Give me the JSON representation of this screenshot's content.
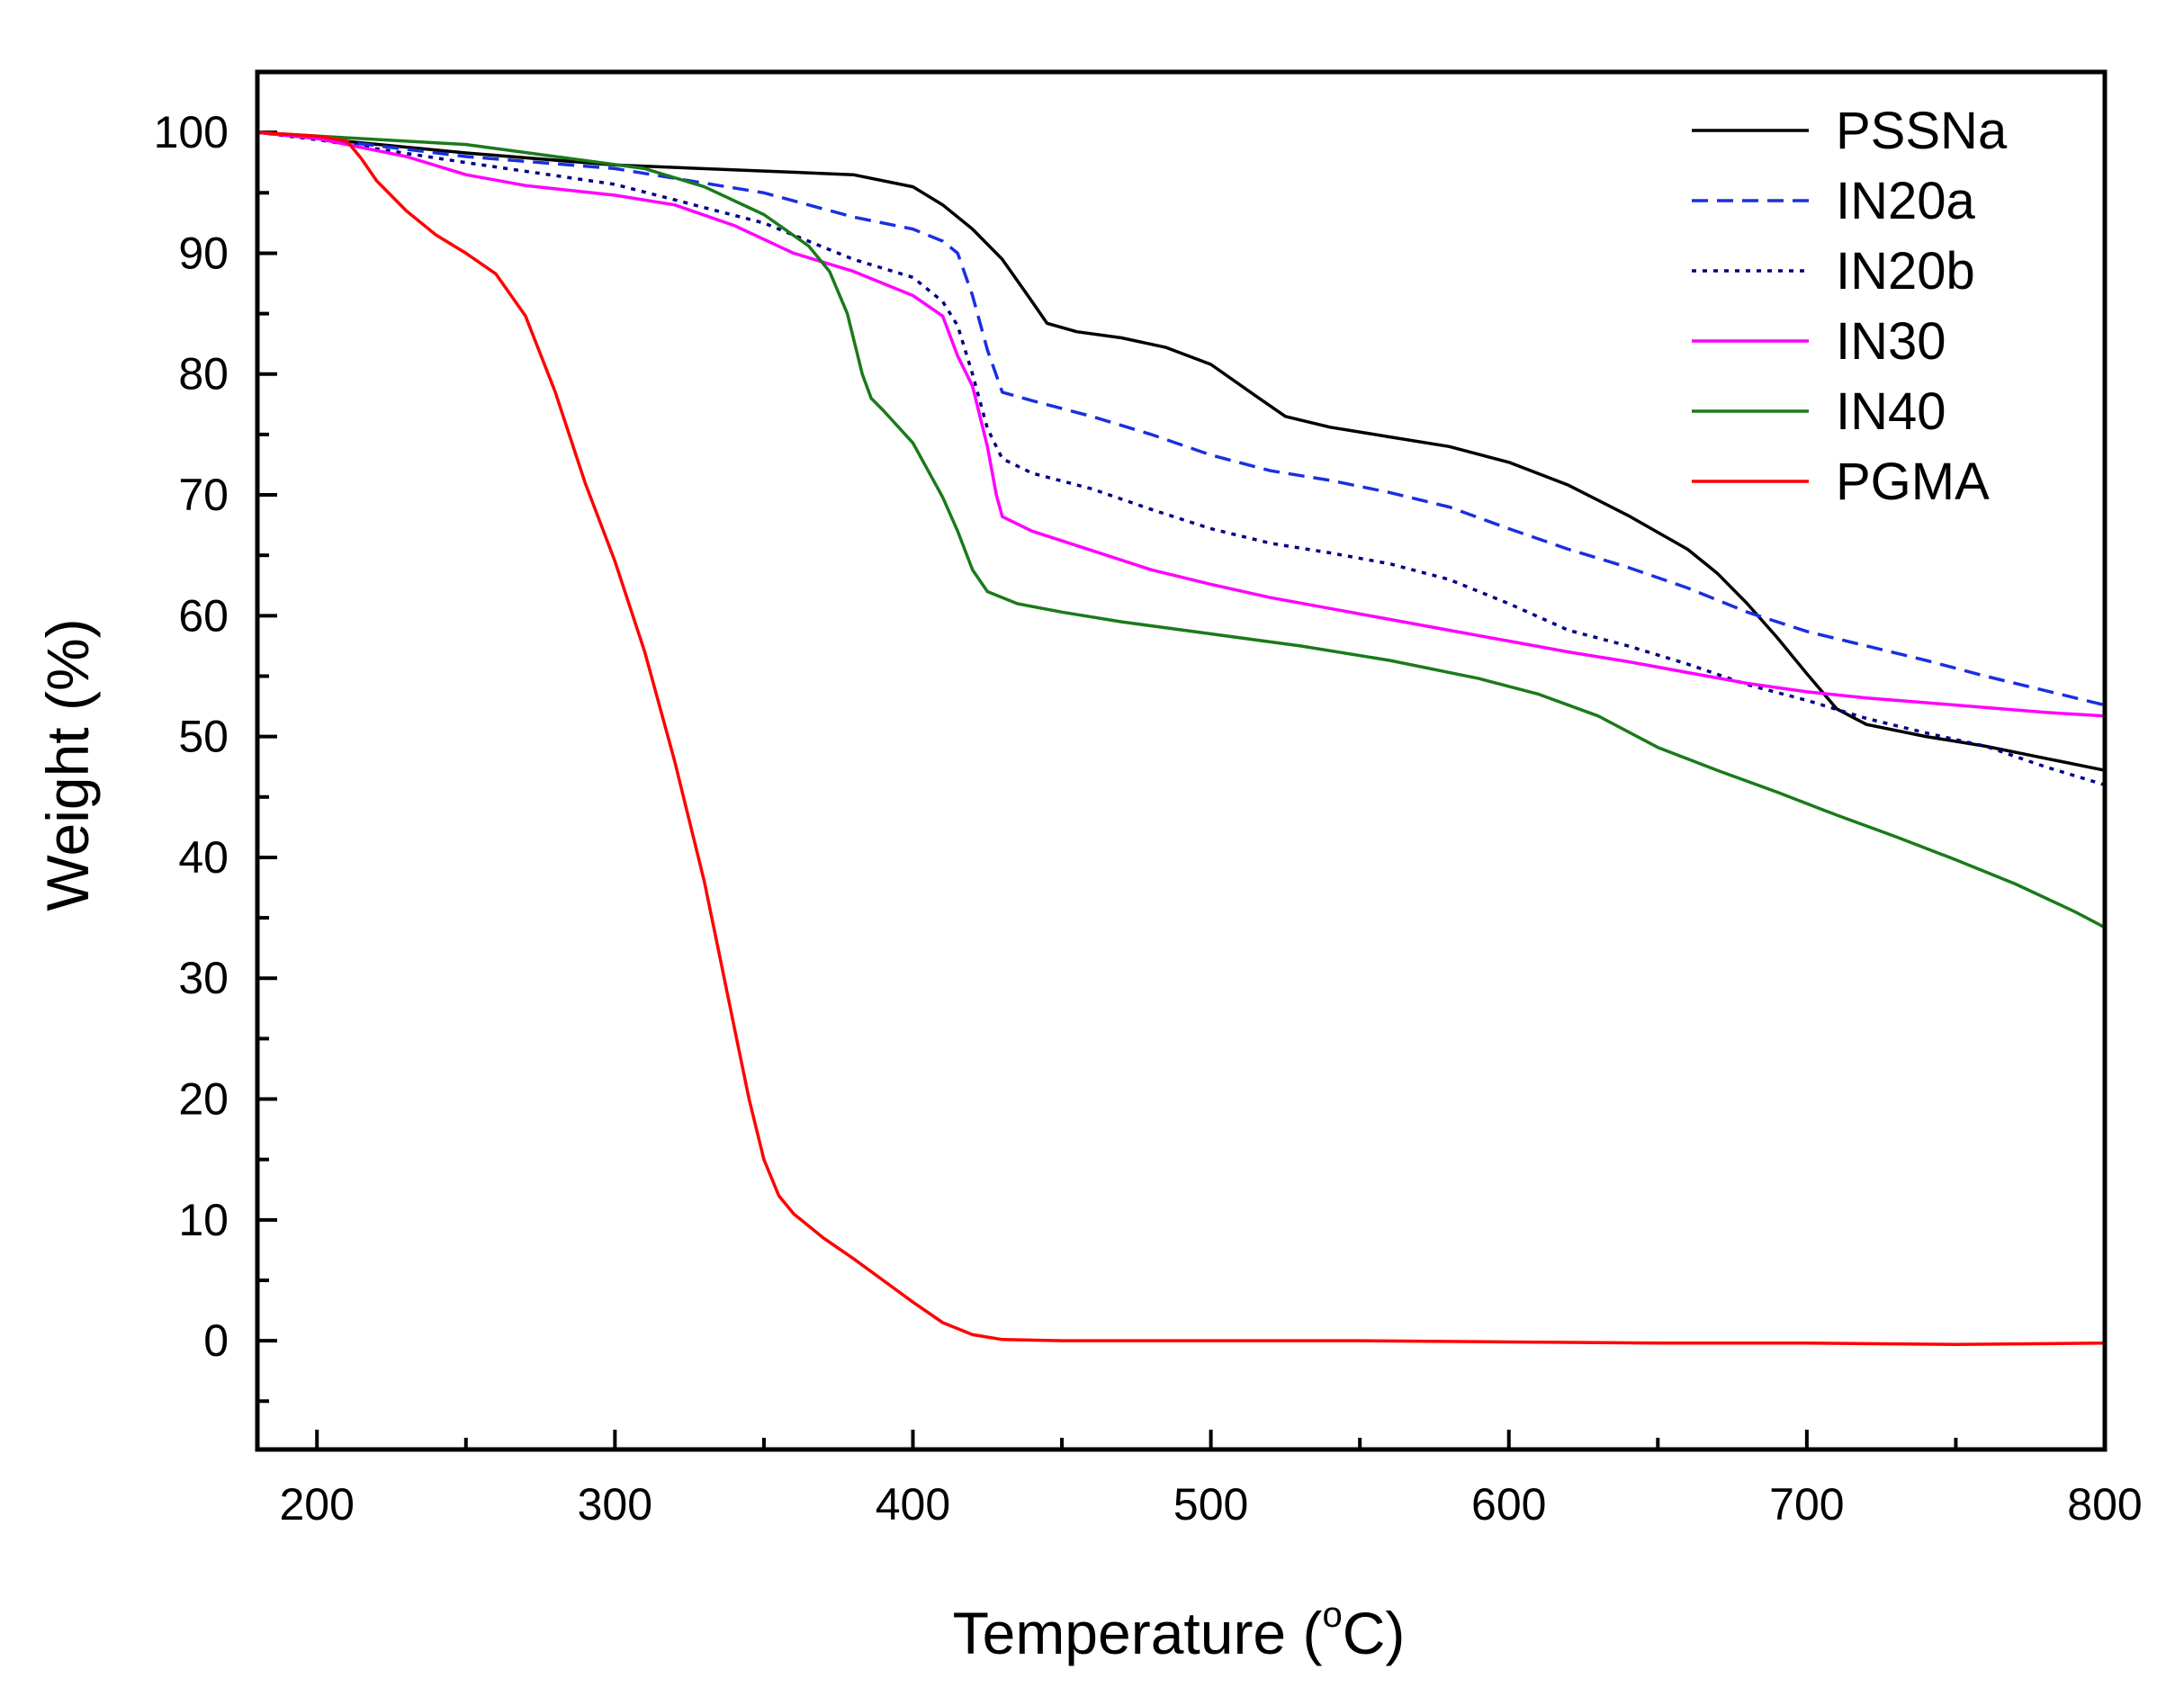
{
  "chart_data": {
    "type": "line",
    "title": "",
    "xlabel": "Temperature (°C)",
    "xlabel_main": "Temperature (",
    "xlabel_sup": "o",
    "xlabel_end": "C)",
    "ylabel": "Weight (%)",
    "xlim": [
      180,
      800
    ],
    "ylim": [
      -9,
      105
    ],
    "xticks": [
      200,
      300,
      400,
      500,
      600,
      700,
      800
    ],
    "yticks": [
      0,
      10,
      20,
      30,
      40,
      50,
      60,
      70,
      80,
      90,
      100
    ],
    "legend_position": "top-right",
    "series": [
      {
        "name": "PSSNa",
        "color": "#000000",
        "dash": "solid",
        "points": [
          [
            180,
            100
          ],
          [
            200,
            99.5
          ],
          [
            250,
            98.3
          ],
          [
            300,
            97.3
          ],
          [
            350,
            96.8
          ],
          [
            380,
            96.5
          ],
          [
            400,
            95.5
          ],
          [
            410,
            94
          ],
          [
            420,
            92
          ],
          [
            430,
            89.5
          ],
          [
            440,
            86
          ],
          [
            445,
            84.2
          ],
          [
            455,
            83.5
          ],
          [
            470,
            83
          ],
          [
            485,
            82.2
          ],
          [
            500,
            80.8
          ],
          [
            515,
            78.2
          ],
          [
            525,
            76.5
          ],
          [
            540,
            75.6
          ],
          [
            560,
            74.8
          ],
          [
            580,
            74
          ],
          [
            600,
            72.7
          ],
          [
            620,
            70.8
          ],
          [
            640,
            68.3
          ],
          [
            660,
            65.5
          ],
          [
            670,
            63.5
          ],
          [
            680,
            61
          ],
          [
            690,
            58.2
          ],
          [
            700,
            55.2
          ],
          [
            710,
            52.3
          ],
          [
            720,
            51
          ],
          [
            740,
            50
          ],
          [
            760,
            49.2
          ],
          [
            780,
            48.2
          ],
          [
            800,
            47.2
          ]
        ]
      },
      {
        "name": "IN20a",
        "color": "#1a2fe0",
        "dash": "dashed",
        "points": [
          [
            180,
            100
          ],
          [
            200,
            99.5
          ],
          [
            250,
            98
          ],
          [
            300,
            97
          ],
          [
            350,
            95
          ],
          [
            380,
            93
          ],
          [
            400,
            92
          ],
          [
            410,
            91
          ],
          [
            415,
            90
          ],
          [
            420,
            86.5
          ],
          [
            425,
            82
          ],
          [
            430,
            78.5
          ],
          [
            440,
            77.8
          ],
          [
            460,
            76.5
          ],
          [
            480,
            75
          ],
          [
            500,
            73.3
          ],
          [
            520,
            72
          ],
          [
            540,
            71.2
          ],
          [
            560,
            70.2
          ],
          [
            580,
            69
          ],
          [
            600,
            67.2
          ],
          [
            620,
            65.5
          ],
          [
            640,
            64
          ],
          [
            660,
            62.3
          ],
          [
            680,
            60.3
          ],
          [
            700,
            58.7
          ],
          [
            720,
            57.5
          ],
          [
            740,
            56.3
          ],
          [
            760,
            55
          ],
          [
            780,
            53.8
          ],
          [
            800,
            52.6
          ]
        ]
      },
      {
        "name": "IN20b",
        "color": "#000080",
        "dash": "dotted",
        "points": [
          [
            180,
            100
          ],
          [
            200,
            99.4
          ],
          [
            250,
            97.5
          ],
          [
            300,
            95.7
          ],
          [
            350,
            92.5
          ],
          [
            380,
            89.5
          ],
          [
            400,
            88
          ],
          [
            410,
            86
          ],
          [
            415,
            84
          ],
          [
            420,
            80
          ],
          [
            425,
            75.5
          ],
          [
            430,
            73
          ],
          [
            440,
            71.8
          ],
          [
            460,
            70.5
          ],
          [
            480,
            68.8
          ],
          [
            500,
            67.2
          ],
          [
            520,
            66
          ],
          [
            540,
            65.2
          ],
          [
            560,
            64.3
          ],
          [
            580,
            63
          ],
          [
            600,
            61
          ],
          [
            620,
            58.8
          ],
          [
            640,
            57.5
          ],
          [
            660,
            56
          ],
          [
            680,
            54.3
          ],
          [
            700,
            53
          ],
          [
            720,
            51.5
          ],
          [
            740,
            50.3
          ],
          [
            760,
            49.2
          ],
          [
            780,
            47.5
          ],
          [
            800,
            46
          ]
        ]
      },
      {
        "name": "IN30",
        "color": "#ff00ff",
        "dash": "solid",
        "points": [
          [
            180,
            100
          ],
          [
            200,
            99.5
          ],
          [
            230,
            98
          ],
          [
            250,
            96.5
          ],
          [
            270,
            95.6
          ],
          [
            300,
            94.8
          ],
          [
            320,
            94
          ],
          [
            340,
            92.3
          ],
          [
            360,
            90
          ],
          [
            380,
            88.5
          ],
          [
            400,
            86.5
          ],
          [
            410,
            84.8
          ],
          [
            415,
            81.5
          ],
          [
            420,
            79
          ],
          [
            425,
            74
          ],
          [
            428,
            70
          ],
          [
            430,
            68.2
          ],
          [
            440,
            67
          ],
          [
            460,
            65.4
          ],
          [
            480,
            63.8
          ],
          [
            500,
            62.6
          ],
          [
            520,
            61.5
          ],
          [
            540,
            60.6
          ],
          [
            560,
            59.7
          ],
          [
            580,
            58.8
          ],
          [
            600,
            57.9
          ],
          [
            620,
            57
          ],
          [
            640,
            56.2
          ],
          [
            660,
            55.3
          ],
          [
            680,
            54.4
          ],
          [
            700,
            53.7
          ],
          [
            720,
            53.2
          ],
          [
            740,
            52.8
          ],
          [
            760,
            52.4
          ],
          [
            780,
            52
          ],
          [
            800,
            51.7
          ]
        ]
      },
      {
        "name": "IN40",
        "color": "#1a7a1a",
        "dash": "solid",
        "points": [
          [
            180,
            100
          ],
          [
            200,
            99.7
          ],
          [
            250,
            99
          ],
          [
            280,
            98
          ],
          [
            310,
            97
          ],
          [
            330,
            95.5
          ],
          [
            350,
            93.2
          ],
          [
            365,
            90.6
          ],
          [
            372,
            88.5
          ],
          [
            378,
            85
          ],
          [
            383,
            80
          ],
          [
            386,
            78
          ],
          [
            390,
            77
          ],
          [
            400,
            74.3
          ],
          [
            410,
            69.8
          ],
          [
            415,
            67
          ],
          [
            420,
            63.8
          ],
          [
            425,
            62
          ],
          [
            435,
            61
          ],
          [
            450,
            60.3
          ],
          [
            470,
            59.5
          ],
          [
            500,
            58.5
          ],
          [
            530,
            57.5
          ],
          [
            560,
            56.3
          ],
          [
            590,
            54.8
          ],
          [
            610,
            53.5
          ],
          [
            630,
            51.7
          ],
          [
            650,
            49.1
          ],
          [
            670,
            47.2
          ],
          [
            690,
            45.4
          ],
          [
            710,
            43.5
          ],
          [
            730,
            41.7
          ],
          [
            750,
            39.8
          ],
          [
            770,
            37.8
          ],
          [
            790,
            35.5
          ],
          [
            800,
            34.2
          ]
        ]
      },
      {
        "name": "PGMA",
        "color": "#ff0000",
        "dash": "solid",
        "points": [
          [
            180,
            100
          ],
          [
            200,
            99.7
          ],
          [
            210,
            99.3
          ],
          [
            215,
            97.8
          ],
          [
            220,
            96
          ],
          [
            230,
            93.5
          ],
          [
            240,
            91.5
          ],
          [
            250,
            90
          ],
          [
            260,
            88.3
          ],
          [
            270,
            84.8
          ],
          [
            280,
            78.5
          ],
          [
            290,
            71
          ],
          [
            300,
            64.5
          ],
          [
            310,
            57
          ],
          [
            320,
            48
          ],
          [
            330,
            38
          ],
          [
            335,
            32
          ],
          [
            340,
            26
          ],
          [
            345,
            20
          ],
          [
            350,
            15
          ],
          [
            355,
            12
          ],
          [
            360,
            10.5
          ],
          [
            370,
            8.5
          ],
          [
            380,
            6.8
          ],
          [
            390,
            5
          ],
          [
            400,
            3.2
          ],
          [
            410,
            1.5
          ],
          [
            420,
            0.5
          ],
          [
            430,
            0.1
          ],
          [
            450,
            0
          ],
          [
            500,
            0
          ],
          [
            550,
            0
          ],
          [
            600,
            -0.1
          ],
          [
            650,
            -0.2
          ],
          [
            700,
            -0.2
          ],
          [
            750,
            -0.3
          ],
          [
            800,
            -0.2
          ]
        ]
      }
    ]
  }
}
